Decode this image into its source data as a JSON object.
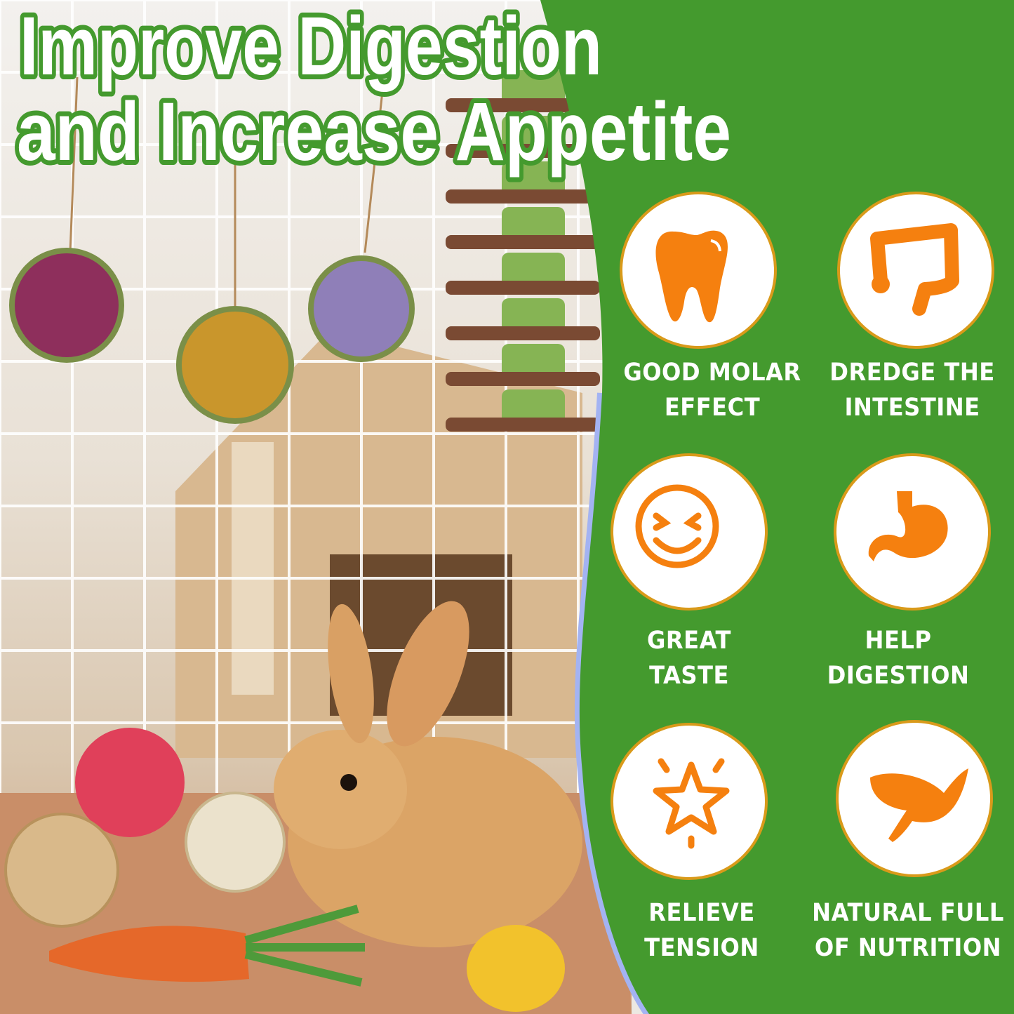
{
  "headline": {
    "line1": "Improve Digestion",
    "line2": "and Increase Appetite"
  },
  "colors": {
    "panel_green": "#449a2e",
    "icon_orange": "#f5800f",
    "ring_gold": "#d99a1a",
    "text_white": "#ffffff"
  },
  "features": [
    {
      "icon": "tooth-icon",
      "line1": "GOOD MOLAR",
      "line2": "EFFECT"
    },
    {
      "icon": "intestine-icon",
      "line1": "DREDGE THE",
      "line2": "INTESTINE"
    },
    {
      "icon": "smiley-face-icon",
      "line1": "GREAT",
      "line2": "TASTE"
    },
    {
      "icon": "stomach-icon",
      "line1": "HELP",
      "line2": "DIGESTION"
    },
    {
      "icon": "star-icon",
      "line1": "RELIEVE",
      "line2": "TENSION"
    },
    {
      "icon": "leaf-icon",
      "line1": "NATURAL FULL",
      "line2": "OF NUTRITION"
    }
  ]
}
